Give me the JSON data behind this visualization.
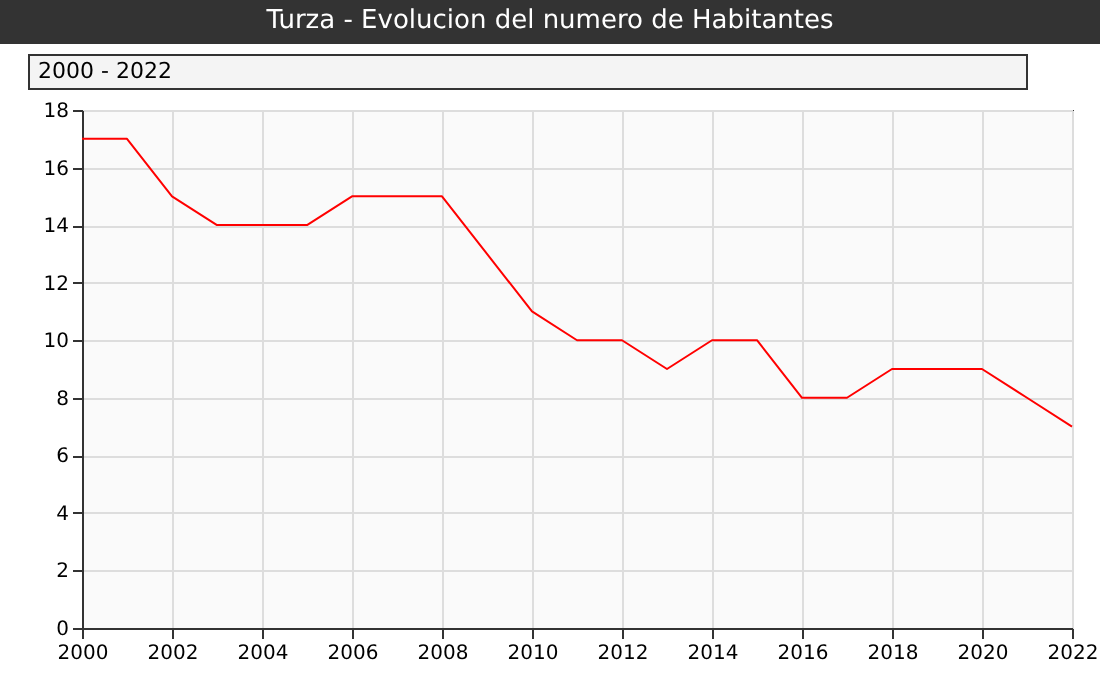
{
  "chart_data": {
    "type": "line",
    "title": "Turza - Evolucion del numero de Habitantes",
    "subtitle": "2000 - 2022",
    "x": [
      2000,
      2001,
      2002,
      2003,
      2004,
      2005,
      2006,
      2007,
      2008,
      2009,
      2010,
      2011,
      2012,
      2013,
      2014,
      2015,
      2016,
      2017,
      2018,
      2019,
      2020,
      2021,
      2022
    ],
    "series": [
      {
        "color": "#ff0000",
        "values": [
          17,
          17,
          15,
          14,
          14,
          14,
          15,
          15,
          15,
          13,
          11,
          10,
          10,
          9,
          10,
          10,
          8,
          8,
          9,
          9,
          9,
          8,
          7
        ]
      }
    ],
    "xlim": [
      2000,
      2022
    ],
    "xticks": [
      2000,
      2002,
      2004,
      2006,
      2008,
      2010,
      2012,
      2014,
      2016,
      2018,
      2020,
      2022
    ],
    "ylim": [
      0,
      18
    ],
    "yticks": [
      0,
      2,
      4,
      6,
      8,
      10,
      12,
      14,
      16,
      18
    ],
    "grid": true,
    "marker": "none",
    "line_style": "solid"
  }
}
